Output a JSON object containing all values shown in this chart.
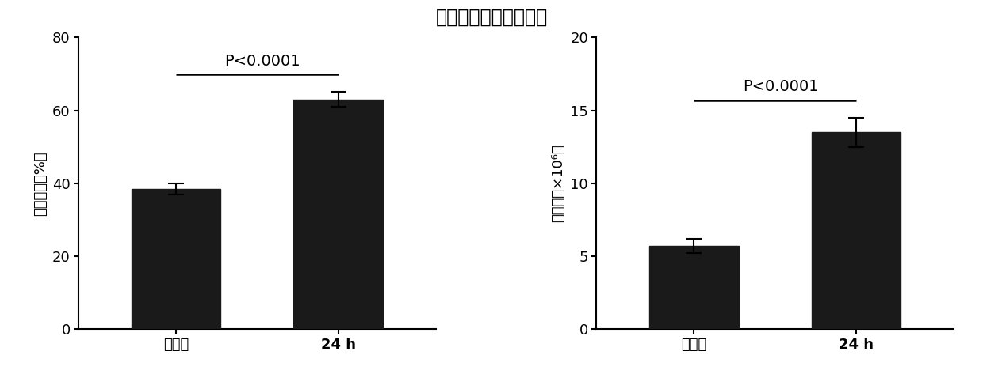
{
  "title": "白细胞中的中性粒细胞",
  "left_chart": {
    "categories": [
      "对照组",
      "24 h"
    ],
    "values": [
      38.5,
      63.0
    ],
    "errors": [
      1.5,
      2.0
    ],
    "ylabel": "细胞比率（%）",
    "ylim": [
      0,
      80
    ],
    "yticks": [
      0,
      20,
      40,
      60,
      80
    ],
    "pvalue_text": "P<0.0001",
    "bar_color": "#1a1a1a"
  },
  "right_chart": {
    "categories": [
      "对照组",
      "24 h"
    ],
    "values": [
      5.7,
      13.5
    ],
    "errors": [
      0.5,
      1.0
    ],
    "ylabel": "细胞数（×10⁶）",
    "ylim": [
      0,
      20
    ],
    "yticks": [
      0,
      5,
      10,
      15,
      20
    ],
    "pvalue_text": "P<0.0001",
    "bar_color": "#1a1a1a"
  },
  "bar_width": 0.55,
  "fig_bg": "#ffffff",
  "axes_bg": "#ffffff",
  "font_color": "#000000",
  "title_fontsize": 17,
  "label_fontsize": 13,
  "tick_fontsize": 13,
  "pvalue_fontsize": 14
}
